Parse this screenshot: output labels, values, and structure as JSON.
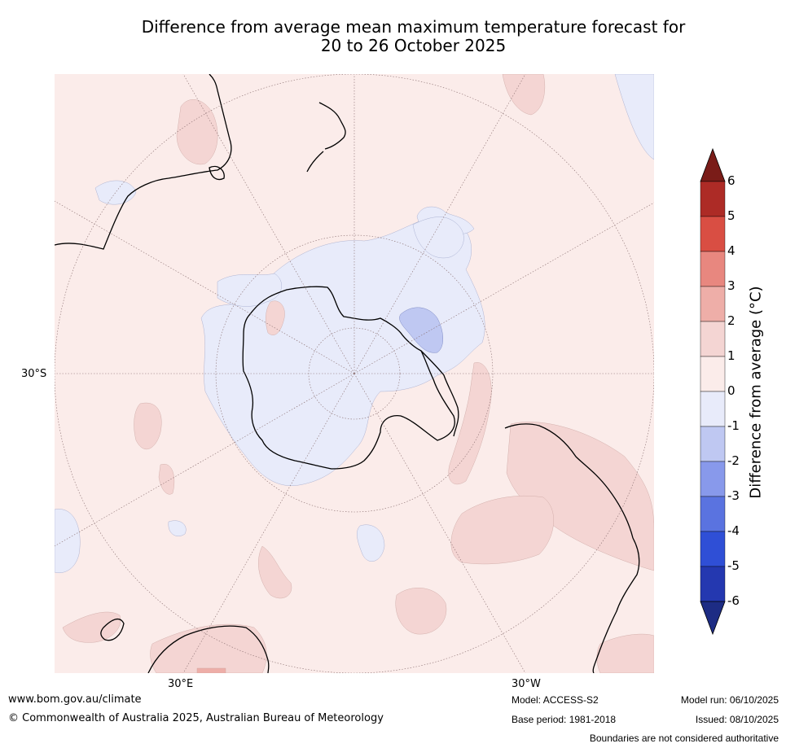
{
  "title": {
    "line1": "Difference from average mean maximum temperature forecast for",
    "line2": "20 to 26 October 2025"
  },
  "axis_labels": {
    "lat_30s": "30°S",
    "lon_30e": "30°E",
    "lon_30w": "30°W"
  },
  "colorbar": {
    "title": "Difference from average (°C)",
    "ticks": [
      "6",
      "5",
      "4",
      "3",
      "2",
      "1",
      "0",
      "-1",
      "-2",
      "-3",
      "-4",
      "-5",
      "-6"
    ],
    "colors": {
      "above_6": "#7a1c18",
      "5_to_6": "#ad2b26",
      "4_to_5": "#d94e43",
      "3_to_4": "#e8877f",
      "2_to_3": "#eeaea8",
      "1_to_2": "#f4d5d3",
      "0_to_1": "#fbecea",
      "-1_to_0": "#e8ebfa",
      "-2_to_-1": "#bfc8f2",
      "-3_to_-2": "#8899eb",
      "-4_to_-3": "#5a73e0",
      "-5_to_-4": "#2f4fd6",
      "-6_to_-5": "#2438b0",
      "below_-6": "#1d2c84"
    }
  },
  "footer": {
    "url": "www.bom.gov.au/climate",
    "copyright": "© Commonwealth of Australia 2025, Australian Bureau of Meteorology",
    "model": "Model: ACCESS-S2",
    "base_period": "Base period: 1981-2018",
    "model_run": "Model run: 06/10/2025",
    "issued": "Issued: 08/10/2025",
    "disclaimer": "Boundaries are not considered authoritative"
  }
}
